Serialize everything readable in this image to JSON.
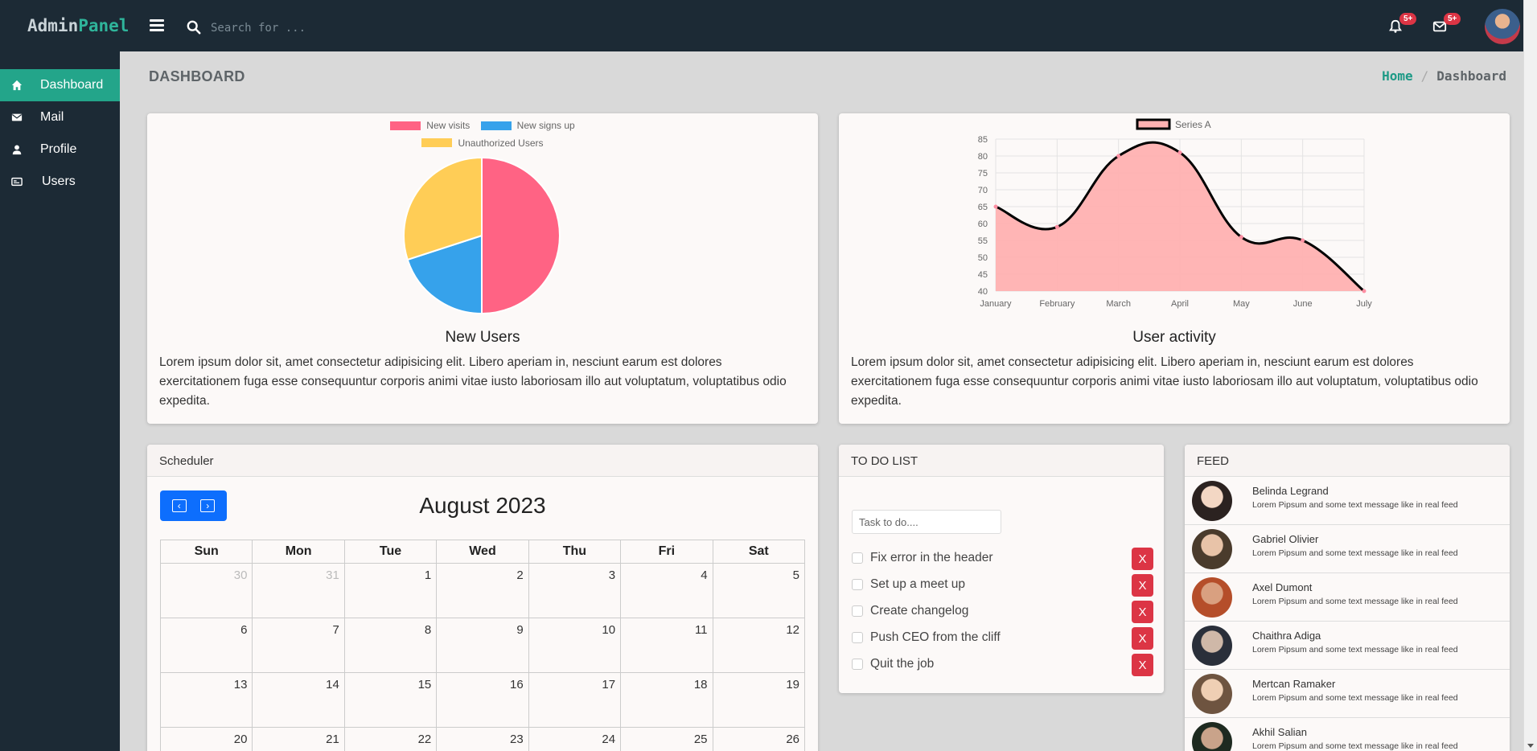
{
  "topbar": {
    "brand_part1": "Admin",
    "brand_part2": "Panel",
    "search_placeholder": "Search for ...",
    "notifications_badge": "5+",
    "messages_badge": "5+"
  },
  "sidebar": {
    "items": [
      {
        "label": "Dashboard",
        "icon": "home-icon",
        "active": true
      },
      {
        "label": "Mail",
        "icon": "envelope-icon"
      },
      {
        "label": "Profile",
        "icon": "user-icon"
      },
      {
        "label": "Users",
        "icon": "id-card-icon"
      }
    ]
  },
  "page": {
    "title": "DASHBOARD",
    "breadcrumb_home": "Home",
    "breadcrumb_separator": "/",
    "breadcrumb_current": "Dashboard"
  },
  "card_new_users": {
    "title": "New Users",
    "text": "Lorem ipsum dolor sit, amet consectetur adipisicing elit. Libero aperiam in, nesciunt earum est dolores exercitationem fuga esse consequuntur corporis animi vitae iusto laboriosam illo aut voluptatum, voluptatibus odio expedita."
  },
  "card_user_activity": {
    "title": "User activity",
    "text": "Lorem ipsum dolor sit, amet consectetur adipisicing elit. Libero aperiam in, nesciunt earum est dolores exercitationem fuga esse consequuntur corporis animi vitae iusto laboriosam illo aut voluptatum, voluptatibus odio expedita."
  },
  "chart_data": [
    {
      "type": "pie",
      "title": "",
      "categories": [
        "New visits",
        "New signs up",
        "Unauthorized Users"
      ],
      "values": [
        50,
        20,
        30
      ],
      "colors": [
        "#ff6384",
        "#36a2eb",
        "#ffcd56"
      ],
      "legend": "top"
    },
    {
      "type": "area",
      "title": "",
      "categories": [
        "January",
        "February",
        "March",
        "April",
        "May",
        "June",
        "July"
      ],
      "series": [
        {
          "name": "Series A",
          "values": [
            65,
            59,
            80,
            81,
            56,
            55,
            40
          ]
        }
      ],
      "ylim": [
        40,
        85
      ],
      "yticks": [
        40,
        45,
        50,
        55,
        60,
        65,
        70,
        75,
        80,
        85
      ],
      "fill_color": "#ffb1b1",
      "line_color": "#000000",
      "grid": true,
      "legend": "top"
    }
  ],
  "scheduler": {
    "header": "Scheduler",
    "title": "August 2023",
    "prev_label": "‹",
    "next_label": "›",
    "weekdays": [
      "Sun",
      "Mon",
      "Tue",
      "Wed",
      "Thu",
      "Fri",
      "Sat"
    ],
    "weeks": [
      [
        {
          "d": "30",
          "other": true
        },
        {
          "d": "31",
          "other": true
        },
        {
          "d": "1"
        },
        {
          "d": "2"
        },
        {
          "d": "3"
        },
        {
          "d": "4"
        },
        {
          "d": "5"
        }
      ],
      [
        {
          "d": "6"
        },
        {
          "d": "7"
        },
        {
          "d": "8"
        },
        {
          "d": "9"
        },
        {
          "d": "10"
        },
        {
          "d": "11"
        },
        {
          "d": "12"
        }
      ],
      [
        {
          "d": "13"
        },
        {
          "d": "14"
        },
        {
          "d": "15"
        },
        {
          "d": "16"
        },
        {
          "d": "17"
        },
        {
          "d": "18"
        },
        {
          "d": "19"
        }
      ],
      [
        {
          "d": "20"
        },
        {
          "d": "21"
        },
        {
          "d": "22"
        },
        {
          "d": "23"
        },
        {
          "d": "24"
        },
        {
          "d": "25"
        },
        {
          "d": "26"
        }
      ]
    ]
  },
  "todo": {
    "header": "TO DO LIST",
    "placeholder": "Task to do....",
    "delete_label": "X",
    "items": [
      "Fix error in the header",
      "Set up a meet up",
      "Create changelog",
      "Push CEO from the cliff",
      "Quit the job"
    ]
  },
  "feed": {
    "header": "FEED",
    "items": [
      {
        "name": "Belinda Legrand",
        "message": "Lorem Pipsum and some text message like in real feed"
      },
      {
        "name": "Gabriel Olivier",
        "message": "Lorem Pipsum and some text message like in real feed"
      },
      {
        "name": "Axel Dumont",
        "message": "Lorem Pipsum and some text message like in real feed"
      },
      {
        "name": "Chaithra Adiga",
        "message": "Lorem Pipsum and some text message like in real feed"
      },
      {
        "name": "Mertcan Ramaker",
        "message": "Lorem Pipsum and some text message like in real feed"
      },
      {
        "name": "Akhil Salian",
        "message": "Lorem Pipsum and some text message like in real feed"
      }
    ]
  }
}
